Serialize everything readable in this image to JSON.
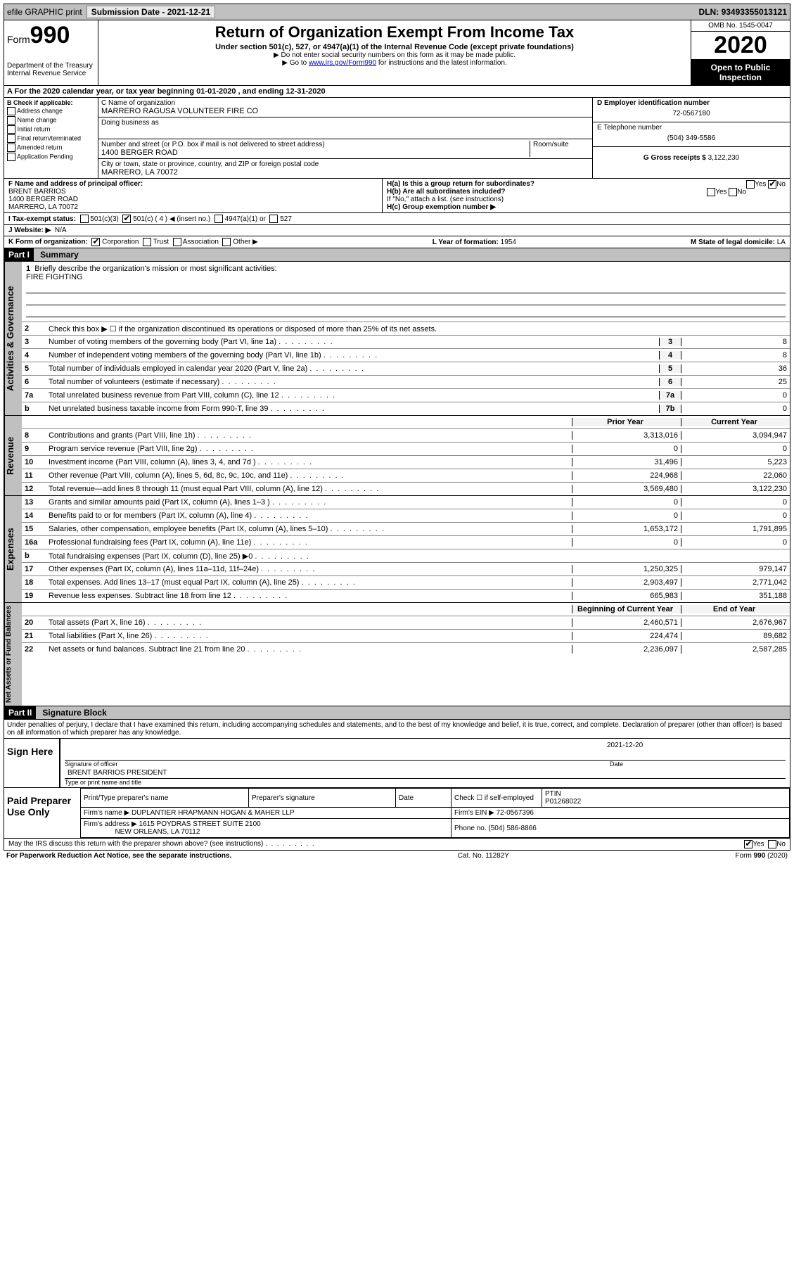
{
  "topbar": {
    "efile": "efile GRAPHIC print",
    "subdate_label": "Submission Date -",
    "subdate": "2021-12-21",
    "dln_label": "DLN:",
    "dln": "93493355013121"
  },
  "header": {
    "form_word": "Form",
    "form_num": "990",
    "dept": "Department of the Treasury\nInternal Revenue Service",
    "title": "Return of Organization Exempt From Income Tax",
    "sub1": "Under section 501(c), 527, or 4947(a)(1) of the Internal Revenue Code (except private foundations)",
    "sub2": "▶ Do not enter social security numbers on this form as it may be made public.",
    "sub3_pre": "▶ Go to ",
    "sub3_link": "www.irs.gov/Form990",
    "sub3_post": " for instructions and the latest information.",
    "omb": "OMB No. 1545-0047",
    "year": "2020",
    "inspect": "Open to Public Inspection"
  },
  "rowA": {
    "text": "A For the 2020 calendar year, or tax year beginning 01-01-2020    , and ending 12-31-2020"
  },
  "colB": {
    "label": "B Check if applicable:",
    "opts": [
      "Address change",
      "Name change",
      "Initial return",
      "Final return/terminated",
      "Amended return",
      "Application Pending"
    ]
  },
  "colC": {
    "name_label": "C Name of organization",
    "name": "MARRERO RAGUSA VOLUNTEER FIRE CO",
    "dba_label": "Doing business as",
    "addr_label": "Number and street (or P.O. box if mail is not delivered to street address)",
    "room_label": "Room/suite",
    "addr": "1400 BERGER ROAD",
    "city_label": "City or town, state or province, country, and ZIP or foreign postal code",
    "city": "MARRERO, LA  70072"
  },
  "colD": {
    "ein_label": "D Employer identification number",
    "ein": "72-0567180",
    "tel_label": "E Telephone number",
    "tel": "(504) 349-5586",
    "gross_label": "G Gross receipts $",
    "gross": "3,122,230"
  },
  "rowF": {
    "label": "F Name and address of principal officer:",
    "name": "BRENT BARRIOS",
    "addr1": "1400 BERGER ROAD",
    "addr2": "MARRERO, LA  70072"
  },
  "rowH": {
    "a": "H(a)  Is this a group return for subordinates?",
    "a_yes": "Yes",
    "a_no": "No",
    "b": "H(b)  Are all subordinates included?",
    "b_note": "If \"No,\" attach a list. (see instructions)",
    "c": "H(c)  Group exemption number ▶"
  },
  "rowI": {
    "label": "I  Tax-exempt status:",
    "opt1": "501(c)(3)",
    "opt2": "501(c) ( 4 ) ◀ (insert no.)",
    "opt3": "4947(a)(1) or",
    "opt4": "527"
  },
  "rowJ": {
    "label": "J  Website: ▶",
    "val": "N/A"
  },
  "rowK": {
    "label": "K Form of organization:",
    "opts": [
      "Corporation",
      "Trust",
      "Association",
      "Other ▶"
    ],
    "l_label": "L Year of formation:",
    "l_val": "1954",
    "m_label": "M State of legal domicile:",
    "m_val": "LA"
  },
  "part1": {
    "header": "Part I",
    "title": "Summary"
  },
  "summary": {
    "line1": "Briefly describe the organization's mission or most significant activities:",
    "mission": "FIRE FIGHTING",
    "line2": "Check this box ▶ ☐  if the organization discontinued its operations or disposed of more than 25% of its net assets."
  },
  "governance_lines": [
    {
      "n": "3",
      "d": "Number of voting members of the governing body (Part VI, line 1a)",
      "b": "3",
      "v": "8"
    },
    {
      "n": "4",
      "d": "Number of independent voting members of the governing body (Part VI, line 1b)",
      "b": "4",
      "v": "8"
    },
    {
      "n": "5",
      "d": "Total number of individuals employed in calendar year 2020 (Part V, line 2a)",
      "b": "5",
      "v": "36"
    },
    {
      "n": "6",
      "d": "Total number of volunteers (estimate if necessary)",
      "b": "6",
      "v": "25"
    },
    {
      "n": "7a",
      "d": "Total unrelated business revenue from Part VIII, column (C), line 12",
      "b": "7a",
      "v": "0"
    },
    {
      "n": "b",
      "d": "Net unrelated business taxable income from Form 990-T, line 39",
      "b": "7b",
      "v": "0"
    }
  ],
  "revenue_hdr": {
    "prior": "Prior Year",
    "current": "Current Year"
  },
  "revenue_lines": [
    {
      "n": "8",
      "d": "Contributions and grants (Part VIII, line 1h)",
      "p": "3,313,016",
      "c": "3,094,947"
    },
    {
      "n": "9",
      "d": "Program service revenue (Part VIII, line 2g)",
      "p": "0",
      "c": "0"
    },
    {
      "n": "10",
      "d": "Investment income (Part VIII, column (A), lines 3, 4, and 7d )",
      "p": "31,496",
      "c": "5,223"
    },
    {
      "n": "11",
      "d": "Other revenue (Part VIII, column (A), lines 5, 6d, 8c, 9c, 10c, and 11e)",
      "p": "224,968",
      "c": "22,060"
    },
    {
      "n": "12",
      "d": "Total revenue—add lines 8 through 11 (must equal Part VIII, column (A), line 12)",
      "p": "3,569,480",
      "c": "3,122,230"
    }
  ],
  "expense_lines": [
    {
      "n": "13",
      "d": "Grants and similar amounts paid (Part IX, column (A), lines 1–3 )",
      "p": "0",
      "c": "0"
    },
    {
      "n": "14",
      "d": "Benefits paid to or for members (Part IX, column (A), line 4)",
      "p": "0",
      "c": "0"
    },
    {
      "n": "15",
      "d": "Salaries, other compensation, employee benefits (Part IX, column (A), lines 5–10)",
      "p": "1,653,172",
      "c": "1,791,895"
    },
    {
      "n": "16a",
      "d": "Professional fundraising fees (Part IX, column (A), line 11e)",
      "p": "0",
      "c": "0"
    },
    {
      "n": "b",
      "d": "Total fundraising expenses (Part IX, column (D), line 25) ▶0",
      "p": "",
      "c": "",
      "shade": true
    },
    {
      "n": "17",
      "d": "Other expenses (Part IX, column (A), lines 11a–11d, 11f–24e)",
      "p": "1,250,325",
      "c": "979,147"
    },
    {
      "n": "18",
      "d": "Total expenses. Add lines 13–17 (must equal Part IX, column (A), line 25)",
      "p": "2,903,497",
      "c": "2,771,042"
    },
    {
      "n": "19",
      "d": "Revenue less expenses. Subtract line 18 from line 12",
      "p": "665,983",
      "c": "351,188"
    }
  ],
  "netassets_hdr": {
    "begin": "Beginning of Current Year",
    "end": "End of Year"
  },
  "netassets_lines": [
    {
      "n": "20",
      "d": "Total assets (Part X, line 16)",
      "p": "2,460,571",
      "c": "2,676,967"
    },
    {
      "n": "21",
      "d": "Total liabilities (Part X, line 26)",
      "p": "224,474",
      "c": "89,682"
    },
    {
      "n": "22",
      "d": "Net assets or fund balances. Subtract line 21 from line 20",
      "p": "2,236,097",
      "c": "2,587,285"
    }
  ],
  "part2": {
    "header": "Part II",
    "title": "Signature Block",
    "perjury": "Under penalties of perjury, I declare that I have examined this return, including accompanying schedules and statements, and to the best of my knowledge and belief, it is true, correct, and complete. Declaration of preparer (other than officer) is based on all information of which preparer has any knowledge."
  },
  "sign": {
    "here": "Sign Here",
    "sig_label": "Signature of officer",
    "date_label": "Date",
    "date": "2021-12-20",
    "name": "BRENT BARRIOS PRESIDENT",
    "name_label": "Type or print name and title"
  },
  "paid": {
    "label": "Paid Preparer Use Only",
    "print_label": "Print/Type preparer's name",
    "sig_label": "Preparer's signature",
    "date_label": "Date",
    "check_label": "Check ☐ if self-employed",
    "ptin_label": "PTIN",
    "ptin": "P01268022",
    "firm_name_label": "Firm's name    ▶",
    "firm_name": "DUPLANTIER HRAPMANN HOGAN & MAHER LLP",
    "firm_ein_label": "Firm's EIN ▶",
    "firm_ein": "72-0567396",
    "firm_addr_label": "Firm's address ▶",
    "firm_addr1": "1615 POYDRAS STREET SUITE 2100",
    "firm_addr2": "NEW ORLEANS, LA  70112",
    "phone_label": "Phone no.",
    "phone": "(504) 586-8866"
  },
  "discuss": {
    "text": "May the IRS discuss this return with the preparer shown above? (see instructions)",
    "yes": "Yes",
    "no": "No"
  },
  "footer": {
    "left": "For Paperwork Reduction Act Notice, see the separate instructions.",
    "mid": "Cat. No. 11282Y",
    "right": "Form 990 (2020)"
  },
  "colors": {
    "topbar_bg": "#c0c0c0",
    "black": "#000000",
    "link": "#0000cc"
  }
}
